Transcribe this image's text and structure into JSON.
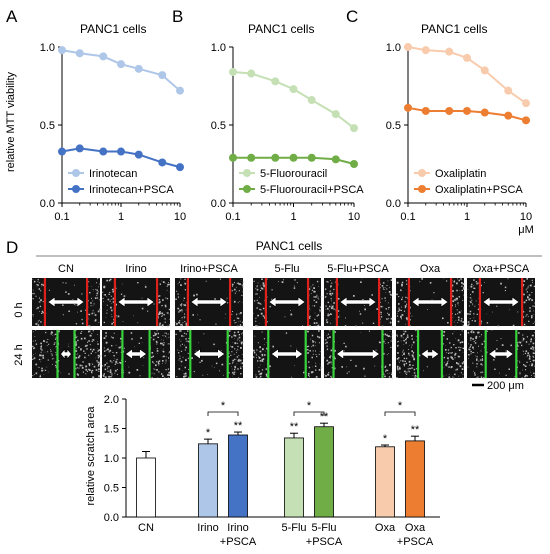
{
  "panels_top": [
    {
      "letter": "A",
      "title": "PANC1 cells",
      "ylabel": "relative MTT viability",
      "chart_data": {
        "type": "line",
        "x": [
          0.1,
          0.2,
          0.5,
          1,
          2,
          5,
          10
        ],
        "xscale": "log",
        "xlim": [
          0.1,
          10
        ],
        "ylim": [
          0.0,
          1.0
        ],
        "xticks": [
          "0.1",
          "1",
          "10"
        ],
        "yticks": [
          "0.0",
          "0.5",
          "1.0"
        ],
        "series": [
          {
            "name": "Irinotecan",
            "color": "#aec6e8",
            "values": [
              0.98,
              0.96,
              0.94,
              0.89,
              0.86,
              0.82,
              0.72
            ]
          },
          {
            "name": "Irinotecan+PSCA",
            "color": "#4472c4",
            "values": [
              0.33,
              0.35,
              0.33,
              0.33,
              0.31,
              0.26,
              0.23
            ]
          }
        ],
        "legend": "bottom-left"
      }
    },
    {
      "letter": "B",
      "title": "PANC1 cells",
      "ylabel": "",
      "chart_data": {
        "type": "line",
        "x": [
          0.1,
          0.2,
          0.5,
          1,
          2,
          5,
          10
        ],
        "xscale": "log",
        "xlim": [
          0.1,
          10
        ],
        "ylim": [
          0.0,
          1.0
        ],
        "xticks": [
          "0.1",
          "1",
          "10"
        ],
        "yticks": [
          "0.0",
          "0.5",
          "1.0"
        ],
        "series": [
          {
            "name": "5-Fluorouracil",
            "color": "#c5e0b4",
            "values": [
              0.84,
              0.83,
              0.78,
              0.73,
              0.66,
              0.57,
              0.48
            ]
          },
          {
            "name": "5-Fluorouracil+PSCA",
            "color": "#70ad47",
            "values": [
              0.29,
              0.29,
              0.29,
              0.29,
              0.29,
              0.28,
              0.25
            ]
          }
        ],
        "legend": "bottom-left"
      }
    },
    {
      "letter": "C",
      "title": "PANC1 cells",
      "ylabel": "",
      "xunit": "μM",
      "chart_data": {
        "type": "line",
        "x": [
          0.1,
          0.2,
          0.5,
          1,
          2,
          5,
          10
        ],
        "xscale": "log",
        "xlim": [
          0.1,
          10
        ],
        "ylim": [
          0.0,
          1.0
        ],
        "xticks": [
          "0.1",
          "1",
          "10"
        ],
        "yticks": [
          "0.0",
          "0.5",
          "1.0"
        ],
        "series": [
          {
            "name": "Oxaliplatin",
            "color": "#f8cbad",
            "values": [
              1.0,
              0.98,
              0.97,
              0.93,
              0.85,
              0.72,
              0.64
            ]
          },
          {
            "name": "Oxaliplatin+PSCA",
            "color": "#ed7d31",
            "values": [
              0.61,
              0.59,
              0.59,
              0.59,
              0.58,
              0.56,
              0.53
            ]
          }
        ],
        "legend": "bottom-left"
      }
    }
  ],
  "panel_d": {
    "letter": "D",
    "title": "PANC1 cells",
    "conditions": [
      "CN",
      "Irino",
      "Irino+PSCA",
      "5-Flu",
      "5-Flu+PSCA",
      "Oxa",
      "Oxa+PSCA"
    ],
    "rows": [
      "0 h",
      "24 h"
    ],
    "scale_bar": "200 μm",
    "line_colors": {
      "0h": "#e0201b",
      "24h": "#38d23a"
    },
    "gap_fraction": {
      "0h": [
        0.62,
        0.62,
        0.62,
        0.62,
        0.62,
        0.62,
        0.62
      ],
      "24h": [
        0.25,
        0.4,
        0.55,
        0.55,
        0.72,
        0.35,
        0.45
      ]
    }
  },
  "bar_chart": {
    "ylabel": "relative scratch area",
    "significance": "*",
    "chart_data": {
      "type": "bar",
      "categories": [
        "CN",
        "Irino",
        "Irino +PSCA",
        "5-Flu",
        "5-Flu +PSCA",
        "Oxa",
        "Oxa +PSCA"
      ],
      "category_lines": [
        [
          "CN"
        ],
        [
          "Irino"
        ],
        [
          "Irino",
          "+PSCA"
        ],
        [
          "5-Flu"
        ],
        [
          "5-Flu",
          "+PSCA"
        ],
        [
          "Oxa"
        ],
        [
          "Oxa",
          "+PSCA"
        ]
      ],
      "values": [
        1.0,
        1.24,
        1.39,
        1.34,
        1.53,
        1.19,
        1.29
      ],
      "errors": [
        0.11,
        0.08,
        0.05,
        0.08,
        0.06,
        0.03,
        0.08
      ],
      "colors": [
        "#ffffff",
        "#aec6e8",
        "#4472c4",
        "#c5e0b4",
        "#70ad47",
        "#f8cbad",
        "#ed7d31"
      ],
      "stars": [
        "",
        "*",
        "**",
        "**",
        "**",
        "*",
        "**"
      ],
      "brackets": [
        [
          1,
          2
        ],
        [
          3,
          4
        ],
        [
          5,
          6
        ]
      ],
      "ylim": [
        0.0,
        2.0
      ],
      "yticks": [
        "0.0",
        "0.5",
        "1.0",
        "1.5",
        "2.0"
      ]
    }
  }
}
